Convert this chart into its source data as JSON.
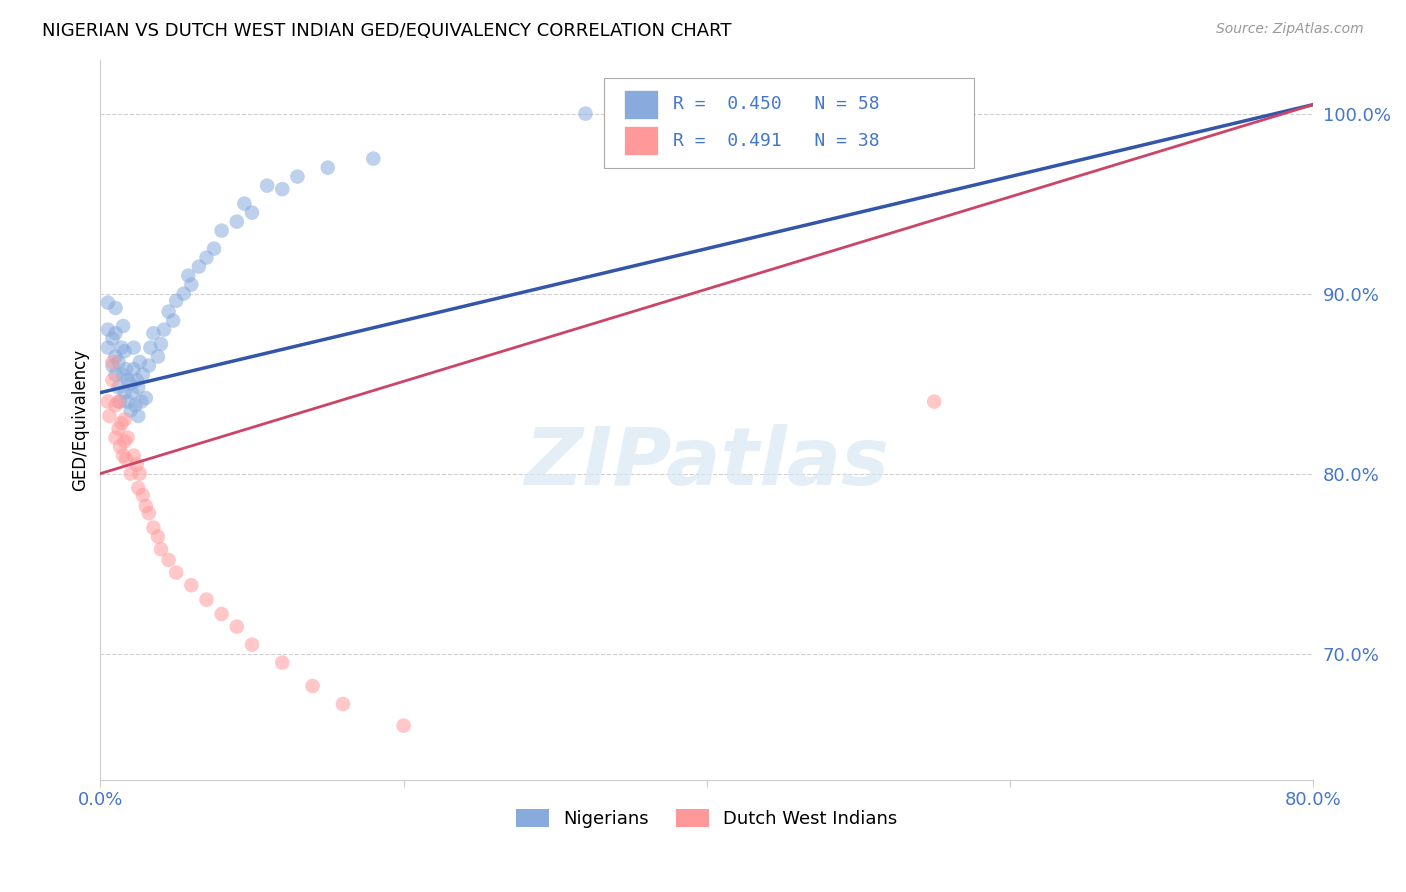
{
  "title": "NIGERIAN VS DUTCH WEST INDIAN GED/EQUIVALENCY CORRELATION CHART",
  "source_text": "Source: ZipAtlas.com",
  "ylabel": "GED/Equivalency",
  "xlim": [
    0.0,
    0.8
  ],
  "ylim": [
    0.63,
    1.03
  ],
  "xtick_vals": [
    0.0,
    0.2,
    0.4,
    0.6,
    0.8
  ],
  "xtick_labels": [
    "0.0%",
    "",
    "",
    "",
    "80.0%"
  ],
  "ytick_vals": [
    0.7,
    0.8,
    0.9,
    1.0
  ],
  "ytick_labels": [
    "70.0%",
    "80.0%",
    "90.0%",
    "100.0%"
  ],
  "blue_color": "#88AADD",
  "pink_color": "#FF9999",
  "blue_line_color": "#3355AA",
  "pink_line_color": "#CC4466",
  "legend_label_blue": "Nigerians",
  "legend_label_pink": "Dutch West Indians",
  "legend_r_blue": "0.450",
  "legend_n_blue": "58",
  "legend_r_pink": "0.491",
  "legend_n_pink": "38",
  "watermark": "ZIPatlas",
  "blue_x": [
    0.005,
    0.005,
    0.005,
    0.008,
    0.008,
    0.01,
    0.01,
    0.01,
    0.01,
    0.012,
    0.012,
    0.013,
    0.014,
    0.015,
    0.015,
    0.016,
    0.016,
    0.017,
    0.018,
    0.018,
    0.02,
    0.02,
    0.021,
    0.022,
    0.022,
    0.023,
    0.024,
    0.025,
    0.025,
    0.026,
    0.027,
    0.028,
    0.03,
    0.032,
    0.033,
    0.035,
    0.038,
    0.04,
    0.042,
    0.045,
    0.048,
    0.05,
    0.055,
    0.058,
    0.06,
    0.065,
    0.07,
    0.075,
    0.08,
    0.09,
    0.095,
    0.1,
    0.11,
    0.12,
    0.13,
    0.15,
    0.18,
    0.32
  ],
  "blue_y": [
    0.87,
    0.88,
    0.895,
    0.86,
    0.875,
    0.855,
    0.865,
    0.878,
    0.892,
    0.848,
    0.862,
    0.84,
    0.87,
    0.855,
    0.882,
    0.845,
    0.868,
    0.858,
    0.84,
    0.852,
    0.835,
    0.85,
    0.845,
    0.858,
    0.87,
    0.838,
    0.852,
    0.832,
    0.848,
    0.862,
    0.84,
    0.855,
    0.842,
    0.86,
    0.87,
    0.878,
    0.865,
    0.872,
    0.88,
    0.89,
    0.885,
    0.896,
    0.9,
    0.91,
    0.905,
    0.915,
    0.92,
    0.925,
    0.935,
    0.94,
    0.95,
    0.945,
    0.96,
    0.958,
    0.965,
    0.97,
    0.975,
    1.0
  ],
  "pink_x": [
    0.005,
    0.006,
    0.008,
    0.008,
    0.01,
    0.01,
    0.012,
    0.012,
    0.013,
    0.014,
    0.015,
    0.016,
    0.016,
    0.017,
    0.018,
    0.02,
    0.022,
    0.024,
    0.025,
    0.026,
    0.028,
    0.03,
    0.032,
    0.035,
    0.038,
    0.04,
    0.045,
    0.05,
    0.06,
    0.07,
    0.08,
    0.09,
    0.1,
    0.12,
    0.14,
    0.16,
    0.2,
    0.55
  ],
  "pink_y": [
    0.84,
    0.832,
    0.852,
    0.862,
    0.82,
    0.838,
    0.825,
    0.84,
    0.815,
    0.828,
    0.81,
    0.818,
    0.83,
    0.808,
    0.82,
    0.8,
    0.81,
    0.805,
    0.792,
    0.8,
    0.788,
    0.782,
    0.778,
    0.77,
    0.765,
    0.758,
    0.752,
    0.745,
    0.738,
    0.73,
    0.722,
    0.715,
    0.705,
    0.695,
    0.682,
    0.672,
    0.66,
    0.84
  ],
  "blue_line_x0": 0.0,
  "blue_line_x1": 0.8,
  "blue_line_y0": 0.845,
  "blue_line_y1": 1.005,
  "pink_line_x0": 0.0,
  "pink_line_x1": 0.8,
  "pink_line_y0": 0.8,
  "pink_line_y1": 1.005,
  "dot_size": 110,
  "blue_alpha": 0.55,
  "pink_alpha": 0.55
}
